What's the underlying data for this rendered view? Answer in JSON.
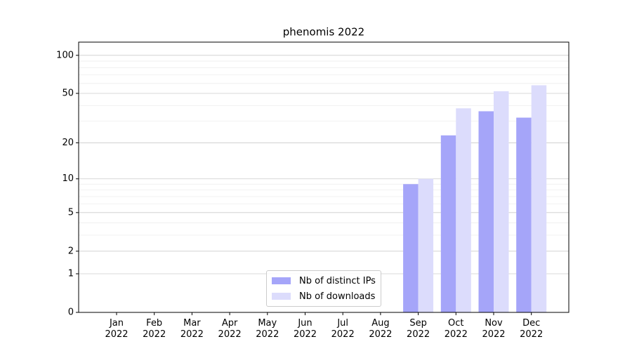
{
  "chart_data": {
    "type": "bar",
    "title": "phenomis 2022",
    "categories": [
      "Jan 2022",
      "Feb 2022",
      "Mar 2022",
      "Apr 2022",
      "May 2022",
      "Jun 2022",
      "Jul 2022",
      "Aug 2022",
      "Sep 2022",
      "Oct 2022",
      "Nov 2022",
      "Dec 2022"
    ],
    "series": [
      {
        "name": "Nb of distinct IPs",
        "color": "#a5a5f9",
        "values": [
          0,
          0,
          0,
          0,
          0,
          0,
          0,
          0,
          9,
          23,
          36,
          32
        ]
      },
      {
        "name": "Nb of downloads",
        "color": "#dcdcfc",
        "values": [
          0,
          0,
          0,
          0,
          0,
          0,
          0,
          0,
          10,
          38,
          52,
          58
        ]
      }
    ],
    "yscale": "log1p",
    "ylim": [
      0,
      127
    ],
    "yticks": [
      0,
      1,
      2,
      5,
      10,
      20,
      50,
      100
    ],
    "yminorticks": [
      3,
      4,
      6,
      7,
      8,
      9,
      30,
      40,
      60,
      70,
      80,
      90
    ],
    "grid": true,
    "legend": "lower center"
  }
}
